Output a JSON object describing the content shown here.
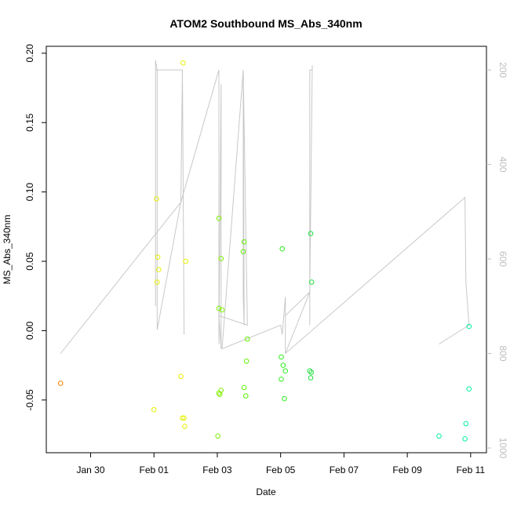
{
  "chart_data": {
    "type": "scatter",
    "title": "ATOM2 Southbound MS_Abs_340nm",
    "xlabel": "Date",
    "ylabel": "MS_Abs_340nm",
    "x_ticks": [
      "Jan 30",
      "Feb 01",
      "Feb 03",
      "Feb 05",
      "Feb 07",
      "Feb 09",
      "Feb 11"
    ],
    "x_tick_days": [
      -2,
      0,
      2,
      4,
      6,
      8,
      10
    ],
    "xlim": [
      -3.4,
      10.5
    ],
    "ylim": [
      -0.088,
      0.205
    ],
    "y_ticks": [
      -0.05,
      0.0,
      0.05,
      0.1,
      0.15,
      0.2
    ],
    "y_tick_labels": [
      "-0.05",
      "0.00",
      "0.05",
      "0.10",
      "0.15",
      "0.20"
    ],
    "y2_ticks": [
      200,
      400,
      600,
      800,
      1000
    ],
    "y2_tick_labels": [
      "200",
      "400",
      "600",
      "800",
      "1000"
    ],
    "y2lim": [
      1010,
      150
    ],
    "points": [
      {
        "x": -2.95,
        "y": -0.038,
        "color": "#ff8000"
      },
      {
        "x": 0.0,
        "y": -0.057,
        "color": "#e6f000"
      },
      {
        "x": 0.08,
        "y": 0.095,
        "color": "#e6f000"
      },
      {
        "x": 0.12,
        "y": 0.053,
        "color": "#e6f000"
      },
      {
        "x": 0.15,
        "y": 0.044,
        "color": "#e6f000"
      },
      {
        "x": 0.1,
        "y": 0.035,
        "color": "#e6f000"
      },
      {
        "x": 0.85,
        "y": -0.033,
        "color": "#e6f000"
      },
      {
        "x": 0.9,
        "y": -0.063,
        "color": "#e6f000"
      },
      {
        "x": 0.95,
        "y": -0.063,
        "color": "#e6f000"
      },
      {
        "x": 0.97,
        "y": -0.069,
        "color": "#e6f000"
      },
      {
        "x": 0.92,
        "y": 0.193,
        "color": "#e6f000"
      },
      {
        "x": 1.0,
        "y": 0.05,
        "color": "#e6f000"
      },
      {
        "x": 2.05,
        "y": 0.081,
        "color": "#80f000"
      },
      {
        "x": 2.12,
        "y": 0.052,
        "color": "#80f000"
      },
      {
        "x": 2.05,
        "y": 0.016,
        "color": "#80f000"
      },
      {
        "x": 2.15,
        "y": 0.015,
        "color": "#80f000"
      },
      {
        "x": 2.05,
        "y": -0.045,
        "color": "#80f000"
      },
      {
        "x": 2.08,
        "y": -0.046,
        "color": "#80f000"
      },
      {
        "x": 2.12,
        "y": -0.043,
        "color": "#80f000"
      },
      {
        "x": 2.02,
        "y": -0.076,
        "color": "#80f000"
      },
      {
        "x": 2.85,
        "y": 0.064,
        "color": "#60f000"
      },
      {
        "x": 2.82,
        "y": 0.057,
        "color": "#60f000"
      },
      {
        "x": 2.95,
        "y": -0.006,
        "color": "#60f000"
      },
      {
        "x": 2.92,
        "y": -0.022,
        "color": "#60f000"
      },
      {
        "x": 2.85,
        "y": -0.041,
        "color": "#60f000"
      },
      {
        "x": 2.9,
        "y": -0.047,
        "color": "#60f000"
      },
      {
        "x": 4.05,
        "y": 0.059,
        "color": "#30f020"
      },
      {
        "x": 4.02,
        "y": -0.019,
        "color": "#30f020"
      },
      {
        "x": 4.08,
        "y": -0.025,
        "color": "#30f020"
      },
      {
        "x": 4.15,
        "y": -0.029,
        "color": "#30f020"
      },
      {
        "x": 4.02,
        "y": -0.035,
        "color": "#30f020"
      },
      {
        "x": 4.12,
        "y": -0.049,
        "color": "#30f020"
      },
      {
        "x": 4.95,
        "y": 0.07,
        "color": "#20e040"
      },
      {
        "x": 4.98,
        "y": 0.035,
        "color": "#20e040"
      },
      {
        "x": 4.92,
        "y": -0.029,
        "color": "#20e040"
      },
      {
        "x": 4.97,
        "y": -0.03,
        "color": "#20e040"
      },
      {
        "x": 4.95,
        "y": -0.034,
        "color": "#20e040"
      },
      {
        "x": 9.0,
        "y": -0.076,
        "color": "#00f0a0"
      },
      {
        "x": 9.85,
        "y": -0.067,
        "color": "#00f0a0"
      },
      {
        "x": 9.82,
        "y": -0.078,
        "color": "#00f0a0"
      },
      {
        "x": 9.95,
        "y": 0.003,
        "color": "#00f0a0"
      },
      {
        "x": 9.95,
        "y": -0.042,
        "color": "#00f0a0"
      }
    ],
    "depth_line": [
      [
        -2.95,
        800
      ],
      [
        0.85,
        480
      ],
      [
        0.9,
        200
      ],
      [
        0.95,
        760
      ],
      [
        0.9,
        200
      ],
      [
        0.05,
        200
      ],
      [
        0.05,
        700
      ],
      [
        0.05,
        180
      ],
      [
        0.1,
        200
      ],
      [
        0.1,
        670
      ],
      [
        0.1,
        750
      ],
      [
        0.85,
        480
      ],
      [
        2.05,
        200
      ],
      [
        2.05,
        700
      ],
      [
        2.05,
        780
      ],
      [
        2.12,
        230
      ],
      [
        2.12,
        790
      ],
      [
        2.05,
        720
      ],
      [
        2.95,
        740
      ],
      [
        2.82,
        200
      ],
      [
        2.82,
        680
      ],
      [
        2.85,
        740
      ],
      [
        2.82,
        200
      ],
      [
        2.15,
        790
      ],
      [
        4.0,
        740
      ],
      [
        4.05,
        760
      ],
      [
        4.15,
        680
      ],
      [
        4.15,
        800
      ],
      [
        4.15,
        720
      ],
      [
        4.92,
        670
      ],
      [
        4.92,
        740
      ],
      [
        4.92,
        200
      ],
      [
        5.0,
        200
      ],
      [
        5.0,
        190
      ],
      [
        4.92,
        670
      ],
      [
        4.15,
        800
      ],
      [
        9.82,
        470
      ],
      [
        9.85,
        650
      ],
      [
        9.95,
        740
      ],
      [
        9.0,
        780
      ]
    ]
  }
}
